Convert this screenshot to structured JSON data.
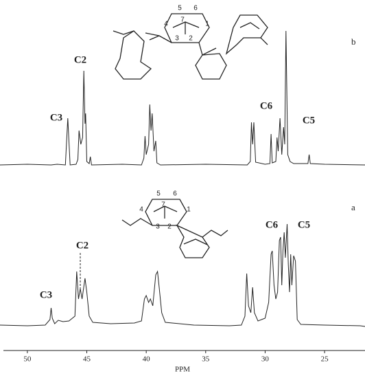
{
  "chart_data": [
    {
      "type": "line",
      "label": "b",
      "color": "#222222",
      "xlim": [
        52.3,
        21.6
      ],
      "ylim": [
        0,
        200
      ],
      "annotations": [
        "C2",
        "C3",
        "C6",
        "C5"
      ],
      "structure_labels": [
        "5",
        "6",
        "4",
        "7",
        "1",
        "3",
        "2"
      ],
      "x": [
        52.3,
        50,
        48,
        47.5,
        46.8,
        46.6,
        46.4,
        45.9,
        45.75,
        45.65,
        45.5,
        45.35,
        45.25,
        45.15,
        45.1,
        45.0,
        44.8,
        44.7,
        44.6,
        42,
        40.4,
        40.2,
        40.1,
        40.0,
        39.8,
        39.7,
        39.6,
        39.5,
        39.35,
        39.2,
        39.1,
        38.8,
        35,
        31.5,
        31.25,
        31.15,
        31.05,
        30.95,
        30.8,
        30.0,
        29.6,
        29.5,
        29.4,
        29.1,
        29.0,
        28.9,
        28.75,
        28.6,
        28.45,
        28.35,
        28.25,
        28.1,
        27.9,
        27.6,
        26.4,
        26.3,
        26.2,
        25,
        21.6
      ],
      "values": [
        0,
        1,
        0,
        1,
        0,
        68,
        0,
        1,
        8,
        50,
        30,
        40,
        137,
        60,
        75,
        5,
        2,
        12,
        0,
        1,
        0,
        10,
        42,
        15,
        30,
        88,
        50,
        75,
        20,
        35,
        3,
        0,
        1,
        0,
        5,
        62,
        30,
        62,
        4,
        1,
        2,
        45,
        3,
        5,
        40,
        20,
        68,
        15,
        55,
        30,
        195,
        15,
        5,
        2,
        2,
        15,
        2,
        1,
        0
      ]
    },
    {
      "type": "line",
      "label": "a",
      "color": "#222222",
      "xlim": [
        52.3,
        21.6
      ],
      "ylim": [
        0,
        200
      ],
      "xlabel": "PPM",
      "xticks": [
        50,
        45,
        40,
        35,
        30,
        25
      ],
      "annotations": [
        "C6",
        "C5",
        "C2",
        "C3"
      ],
      "structure_labels": [
        "5",
        "6",
        "4",
        "7",
        "1",
        "3",
        "2"
      ],
      "x": [
        52.3,
        50,
        48.5,
        48.1,
        48.0,
        47.9,
        47.7,
        47.4,
        47.0,
        46.5,
        46.0,
        45.85,
        45.7,
        45.55,
        45.4,
        45.15,
        45.0,
        44.8,
        44.5,
        43,
        41,
        40.4,
        40.15,
        40.0,
        39.8,
        39.65,
        39.45,
        39.2,
        39.05,
        38.9,
        38.7,
        38.4,
        36,
        33,
        32,
        31.7,
        31.55,
        31.4,
        31.2,
        31.05,
        30.9,
        30.6,
        30.0,
        29.7,
        29.5,
        29.4,
        29.25,
        29.1,
        28.95,
        28.8,
        28.7,
        28.6,
        28.5,
        28.4,
        28.3,
        28.15,
        28.05,
        27.95,
        27.85,
        27.75,
        27.6,
        27.45,
        27.3,
        27,
        25,
        22,
        21.6
      ],
      "values": [
        2,
        1,
        2,
        10,
        27,
        12,
        4,
        9,
        7,
        8,
        15,
        80,
        40,
        55,
        40,
        70,
        50,
        15,
        6,
        4,
        5,
        8,
        40,
        45,
        35,
        40,
        30,
        75,
        80,
        55,
        20,
        6,
        2,
        1,
        2,
        15,
        77,
        30,
        20,
        57,
        20,
        8,
        12,
        35,
        105,
        110,
        60,
        40,
        50,
        125,
        130,
        60,
        110,
        137,
        100,
        149,
        90,
        50,
        105,
        60,
        103,
        95,
        10,
        3,
        2,
        1,
        0
      ]
    }
  ]
}
